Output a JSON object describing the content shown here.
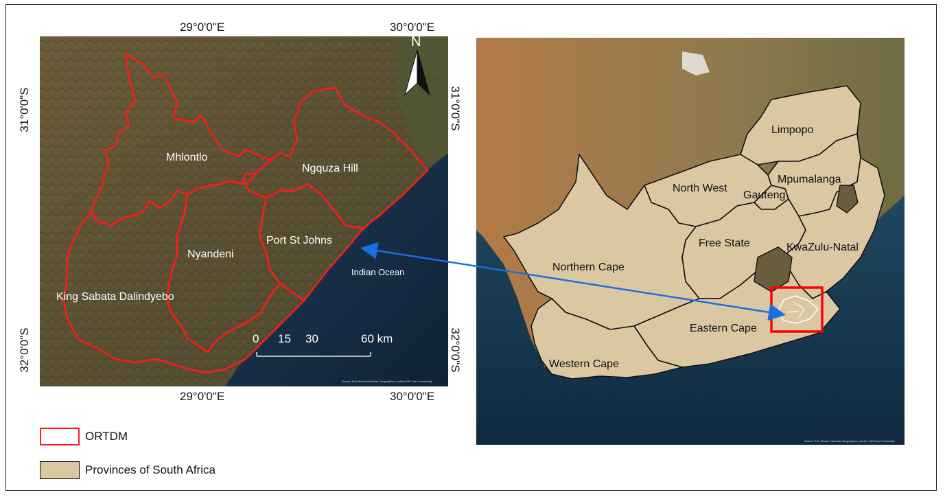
{
  "left_map": {
    "top_lon_labels": [
      "29°0'0\"E",
      "30°0'0\"E"
    ],
    "bottom_lon_labels": [
      "29°0'0\"E",
      "30°0'0\"E"
    ],
    "left_lat_labels": [
      "31°0'0\"S",
      "32°0'0\"S"
    ],
    "right_lat_labels": [
      "31°0'0\"S",
      "32°0'0\"S"
    ],
    "north_label": "N",
    "municipalities": [
      "Mhlontlo",
      "Ngquza Hill",
      "Nyandeni",
      "Port St Johns",
      "King Sabata Dalindyebo"
    ],
    "ocean_label": "Indian Ocean",
    "scale_labels": [
      "0",
      "15",
      "30",
      "60 km"
    ],
    "attribution": "Source: Esri, Maxar, Earthstar Geographics, and the GIS User Community",
    "colors": {
      "boundary": "#ff1a1a",
      "land": "#5e5233",
      "ocean": "#16314a"
    }
  },
  "right_map": {
    "provinces": [
      "Limpopo",
      "North West",
      "Gauteng",
      "Mpumalanga",
      "Free State",
      "KwaZulu-Natal",
      "Northern Cape",
      "Eastern Cape",
      "Western Cape"
    ],
    "attribution": "Source: Esri, Maxar, Earthstar Geographics, and the GIS User Community",
    "colors": {
      "province_fill": "#dcc7a3",
      "highlight": "#ff0000",
      "arrow": "#1a6fe0"
    }
  },
  "legend": {
    "items": [
      {
        "label": "ORTDM",
        "swatch": "red-outline"
      },
      {
        "label": "Provinces of South Africa",
        "swatch": "tan-fill"
      }
    ]
  }
}
